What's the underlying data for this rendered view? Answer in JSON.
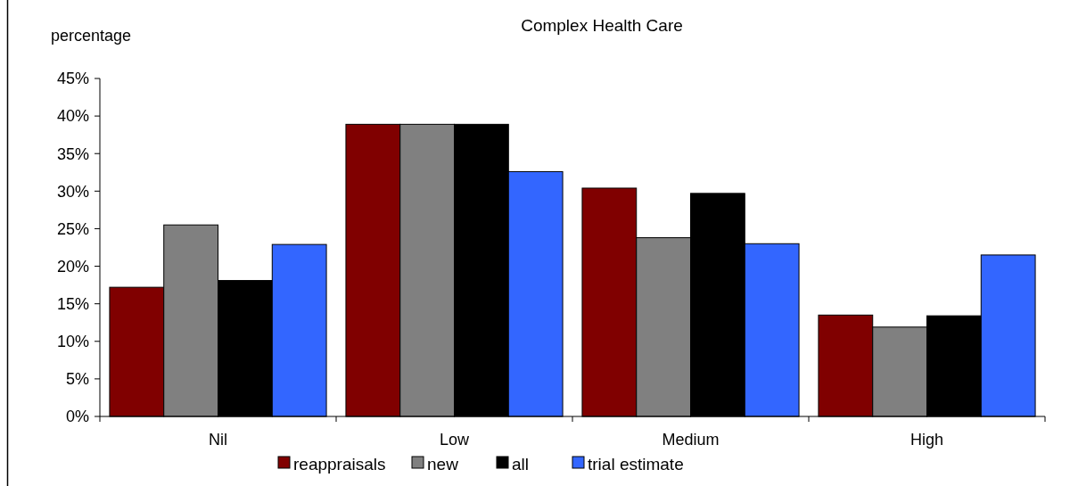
{
  "chart_data": {
    "type": "bar",
    "title": "Complex Health Care",
    "ylabel": "percentage",
    "categories": [
      "Nil",
      "Low",
      "Medium",
      "High"
    ],
    "series": [
      {
        "name": "reappraisals",
        "color": "#800000",
        "values": [
          17.2,
          38.9,
          30.4,
          13.5
        ]
      },
      {
        "name": "new",
        "color": "#808080",
        "values": [
          25.5,
          38.9,
          23.8,
          11.9
        ]
      },
      {
        "name": "all",
        "color": "#000000",
        "values": [
          18.1,
          38.9,
          29.7,
          13.4
        ]
      },
      {
        "name": "trial estimate",
        "color": "#3366ff",
        "values": [
          22.9,
          32.6,
          23.0,
          21.5
        ]
      }
    ],
    "ylim": [
      0,
      45
    ],
    "yticks": [
      {
        "value": 0,
        "label": "0%"
      },
      {
        "value": 5,
        "label": "5%"
      },
      {
        "value": 10,
        "label": "10%"
      },
      {
        "value": 15,
        "label": "15%"
      },
      {
        "value": 20,
        "label": "20%"
      },
      {
        "value": 25,
        "label": "25%"
      },
      {
        "value": 30,
        "label": "30%"
      },
      {
        "value": 35,
        "label": "35%"
      },
      {
        "value": 40,
        "label": "40%"
      },
      {
        "value": 45,
        "label": "45%"
      }
    ],
    "grid": false,
    "legend": "bottom"
  }
}
